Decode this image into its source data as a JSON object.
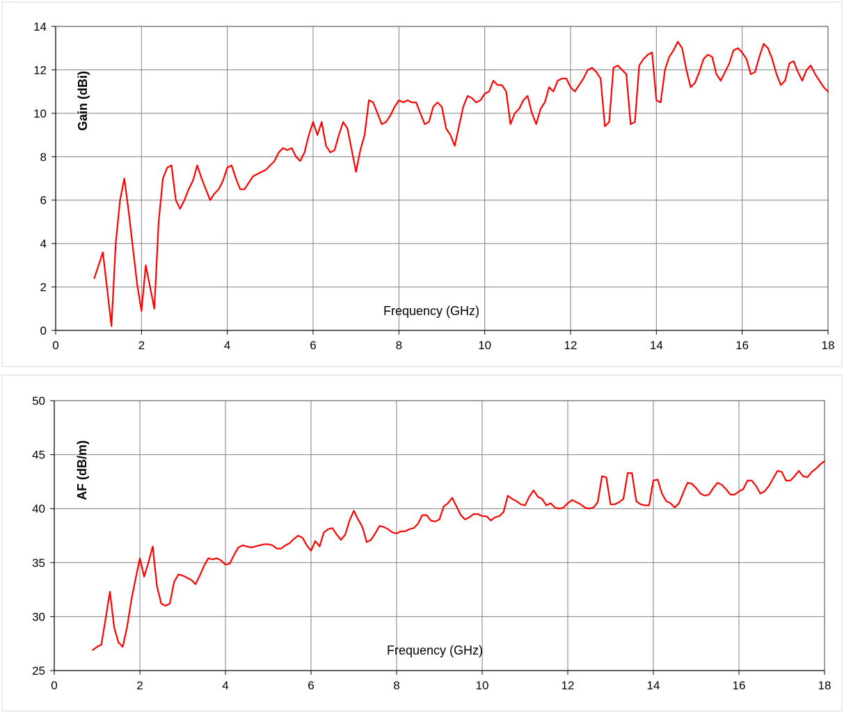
{
  "colors": {
    "series": "#ff0000",
    "grid": "#7f7f7f",
    "frame": "#e6ede9"
  },
  "chart_data": [
    {
      "type": "line",
      "title": "",
      "xlabel": "Frequency (GHz)",
      "ylabel": "Gain (dBi)",
      "xlim": [
        0,
        18
      ],
      "ylim": [
        0,
        14
      ],
      "xticks": [
        0,
        2,
        4,
        6,
        8,
        10,
        12,
        14,
        16,
        18
      ],
      "yticks": [
        0,
        2,
        4,
        6,
        8,
        10,
        12,
        14
      ],
      "grid": true,
      "legend": "none",
      "series": [
        {
          "x": [
            0.9,
            1.1,
            1.3,
            1.4,
            1.5,
            1.6,
            1.7,
            1.8,
            1.9,
            2.0,
            2.1,
            2.2,
            2.3,
            2.4,
            2.5,
            2.6,
            2.7,
            2.8,
            2.9,
            3.0,
            3.1,
            3.2,
            3.3,
            3.4,
            3.5,
            3.6,
            3.7,
            3.8,
            3.9,
            4.0,
            4.1,
            4.2,
            4.3,
            4.4,
            4.5,
            4.6,
            4.7,
            4.8,
            4.9,
            5.0,
            5.1,
            5.2,
            5.3,
            5.4,
            5.5,
            5.6,
            5.7,
            5.8,
            5.9,
            6.0,
            6.1,
            6.2,
            6.3,
            6.4,
            6.5,
            6.6,
            6.7,
            6.8,
            6.9,
            7.0,
            7.1,
            7.2,
            7.3,
            7.4,
            7.5,
            7.6,
            7.7,
            7.8,
            7.9,
            8.0,
            8.1,
            8.2,
            8.3,
            8.4,
            8.5,
            8.6,
            8.7,
            8.8,
            8.9,
            9.0,
            9.1,
            9.2,
            9.3,
            9.4,
            9.5,
            9.6,
            9.7,
            9.8,
            9.9,
            10.0,
            10.1,
            10.2,
            10.3,
            10.4,
            10.5,
            10.6,
            10.7,
            10.8,
            10.9,
            11.0,
            11.1,
            11.2,
            11.3,
            11.4,
            11.5,
            11.6,
            11.7,
            11.8,
            11.9,
            12.0,
            12.1,
            12.2,
            12.3,
            12.4,
            12.5,
            12.6,
            12.7,
            12.8,
            12.9,
            13.0,
            13.1,
            13.2,
            13.3,
            13.4,
            13.5,
            13.6,
            13.7,
            13.8,
            13.9,
            14.0,
            14.1,
            14.2,
            14.3,
            14.4,
            14.5,
            14.6,
            14.7,
            14.8,
            14.9,
            15.0,
            15.1,
            15.2,
            15.3,
            15.4,
            15.5,
            15.6,
            15.7,
            15.8,
            15.9,
            16.0,
            16.1,
            16.2,
            16.3,
            16.4,
            16.5,
            16.6,
            16.7,
            16.8,
            16.9,
            17.0,
            17.1,
            17.2,
            17.3,
            17.4,
            17.5,
            17.6,
            17.7,
            17.8,
            17.9,
            18.0
          ],
          "y": [
            2.4,
            3.6,
            0.2,
            4.0,
            6.0,
            7.0,
            5.5,
            3.8,
            2.1,
            0.9,
            3.0,
            2.0,
            1.0,
            5.0,
            7.0,
            7.5,
            7.6,
            6.0,
            5.6,
            6.0,
            6.5,
            6.9,
            7.6,
            7.0,
            6.5,
            6.0,
            6.3,
            6.5,
            6.9,
            7.5,
            7.6,
            7.0,
            6.5,
            6.5,
            6.8,
            7.1,
            7.2,
            7.3,
            7.4,
            7.6,
            7.8,
            8.2,
            8.4,
            8.3,
            8.4,
            8.0,
            7.8,
            8.2,
            9.0,
            9.6,
            9.0,
            9.6,
            8.5,
            8.2,
            8.3,
            9.0,
            9.6,
            9.3,
            8.3,
            7.3,
            8.3,
            9.0,
            10.6,
            10.5,
            10.0,
            9.5,
            9.6,
            9.9,
            10.3,
            10.6,
            10.5,
            10.6,
            10.5,
            10.5,
            10.0,
            9.5,
            9.6,
            10.3,
            10.5,
            10.3,
            9.3,
            9.0,
            8.5,
            9.4,
            10.3,
            10.8,
            10.7,
            10.5,
            10.6,
            10.9,
            11.0,
            11.5,
            11.3,
            11.3,
            11.0,
            9.5,
            10.0,
            10.2,
            10.6,
            10.8,
            10.0,
            9.5,
            10.2,
            10.5,
            11.2,
            11.0,
            11.5,
            11.6,
            11.6,
            11.2,
            11.0,
            11.3,
            11.6,
            12.0,
            12.1,
            11.9,
            11.6,
            9.4,
            9.6,
            12.1,
            12.2,
            12.0,
            11.8,
            9.5,
            9.6,
            12.2,
            12.5,
            12.7,
            12.8,
            10.6,
            10.5,
            12.0,
            12.6,
            12.9,
            13.3,
            13.0,
            12.0,
            11.2,
            11.4,
            11.9,
            12.5,
            12.7,
            12.6,
            11.8,
            11.5,
            11.9,
            12.3,
            12.9,
            13.0,
            12.8,
            12.5,
            11.8,
            11.9,
            12.6,
            13.2,
            13.0,
            12.5,
            11.8,
            11.3,
            11.5,
            12.3,
            12.4,
            11.9,
            11.5,
            12.0,
            12.2,
            11.8,
            11.5,
            11.2,
            11.0
          ]
        }
      ]
    },
    {
      "type": "line",
      "title": "",
      "xlabel": "Frequency (GHz)",
      "ylabel": "AF (dB/m)",
      "xlim": [
        0,
        18
      ],
      "ylim": [
        25,
        50
      ],
      "xticks": [
        0,
        2,
        4,
        6,
        8,
        10,
        12,
        14,
        16,
        18
      ],
      "yticks": [
        25,
        30,
        35,
        40,
        45,
        50
      ],
      "grid": true,
      "legend": "none",
      "series": [
        {
          "x": [
            0.9,
            1.0,
            1.1,
            1.2,
            1.3,
            1.4,
            1.5,
            1.6,
            1.7,
            1.8,
            1.9,
            2.0,
            2.1,
            2.2,
            2.3,
            2.4,
            2.5,
            2.6,
            2.7,
            2.8,
            2.9,
            3.0,
            3.1,
            3.2,
            3.3,
            3.4,
            3.5,
            3.6,
            3.7,
            3.8,
            3.9,
            4.0,
            4.1,
            4.2,
            4.3,
            4.4,
            4.5,
            4.6,
            4.7,
            4.8,
            4.9,
            5.0,
            5.1,
            5.2,
            5.3,
            5.4,
            5.5,
            5.6,
            5.7,
            5.8,
            5.9,
            6.0,
            6.1,
            6.2,
            6.3,
            6.4,
            6.5,
            6.6,
            6.7,
            6.8,
            6.9,
            7.0,
            7.1,
            7.2,
            7.3,
            7.4,
            7.5,
            7.6,
            7.7,
            7.8,
            7.9,
            8.0,
            8.1,
            8.2,
            8.3,
            8.4,
            8.5,
            8.6,
            8.7,
            8.8,
            8.9,
            9.0,
            9.1,
            9.2,
            9.3,
            9.4,
            9.5,
            9.6,
            9.7,
            9.8,
            9.9,
            10.0,
            10.1,
            10.2,
            10.3,
            10.4,
            10.5,
            10.6,
            10.7,
            10.8,
            10.9,
            11.0,
            11.1,
            11.2,
            11.3,
            11.4,
            11.5,
            11.6,
            11.7,
            11.8,
            11.9,
            12.0,
            12.1,
            12.2,
            12.3,
            12.4,
            12.5,
            12.6,
            12.7,
            12.8,
            12.9,
            13.0,
            13.1,
            13.2,
            13.3,
            13.4,
            13.5,
            13.6,
            13.7,
            13.8,
            13.9,
            14.0,
            14.1,
            14.2,
            14.3,
            14.4,
            14.5,
            14.6,
            14.7,
            14.8,
            14.9,
            15.0,
            15.1,
            15.2,
            15.3,
            15.4,
            15.5,
            15.6,
            15.7,
            15.8,
            15.9,
            16.0,
            16.1,
            16.2,
            16.3,
            16.4,
            16.5,
            16.6,
            16.7,
            16.8,
            16.9,
            17.0,
            17.1,
            17.2,
            17.3,
            17.4,
            17.5,
            17.6,
            17.7,
            17.8,
            17.9,
            18.0
          ],
          "y": [
            26.9,
            27.2,
            27.4,
            29.8,
            32.3,
            29.0,
            27.6,
            27.2,
            29.0,
            31.5,
            33.5,
            35.4,
            33.7,
            35.0,
            36.5,
            32.8,
            31.2,
            31.0,
            31.2,
            33.2,
            33.9,
            33.8,
            33.6,
            33.4,
            33.0,
            33.8,
            34.7,
            35.4,
            35.3,
            35.4,
            35.2,
            34.8,
            34.9,
            35.7,
            36.4,
            36.6,
            36.5,
            36.4,
            36.5,
            36.6,
            36.7,
            36.7,
            36.6,
            36.3,
            36.3,
            36.6,
            36.8,
            37.2,
            37.5,
            37.3,
            36.6,
            36.1,
            37.0,
            36.5,
            37.8,
            38.1,
            38.2,
            37.6,
            37.1,
            37.6,
            38.9,
            39.8,
            39.0,
            38.3,
            36.9,
            37.1,
            37.7,
            38.4,
            38.3,
            38.1,
            37.8,
            37.7,
            37.9,
            37.9,
            38.1,
            38.2,
            38.6,
            39.4,
            39.4,
            38.9,
            38.8,
            39.0,
            40.2,
            40.5,
            41.0,
            40.2,
            39.4,
            39.0,
            39.2,
            39.5,
            39.5,
            39.3,
            39.3,
            38.9,
            39.2,
            39.3,
            39.7,
            41.2,
            40.9,
            40.7,
            40.4,
            40.3,
            41.1,
            41.7,
            41.1,
            40.9,
            40.3,
            40.5,
            40.1,
            40.0,
            40.1,
            40.5,
            40.8,
            40.6,
            40.4,
            40.1,
            40.0,
            40.1,
            40.6,
            43.0,
            42.9,
            40.4,
            40.4,
            40.6,
            40.9,
            43.3,
            43.3,
            40.7,
            40.4,
            40.3,
            40.3,
            42.6,
            42.7,
            41.4,
            40.7,
            40.5,
            40.1,
            40.5,
            41.5,
            42.4,
            42.3,
            41.9,
            41.4,
            41.2,
            41.3,
            41.9,
            42.4,
            42.2,
            41.8,
            41.3,
            41.3,
            41.6,
            41.8,
            42.6,
            42.6,
            42.1,
            41.4,
            41.6,
            42.1,
            42.8,
            43.5,
            43.4,
            42.6,
            42.6,
            43.0,
            43.5,
            43.0,
            42.9,
            43.4,
            43.7,
            44.1,
            44.4
          ]
        }
      ]
    }
  ]
}
